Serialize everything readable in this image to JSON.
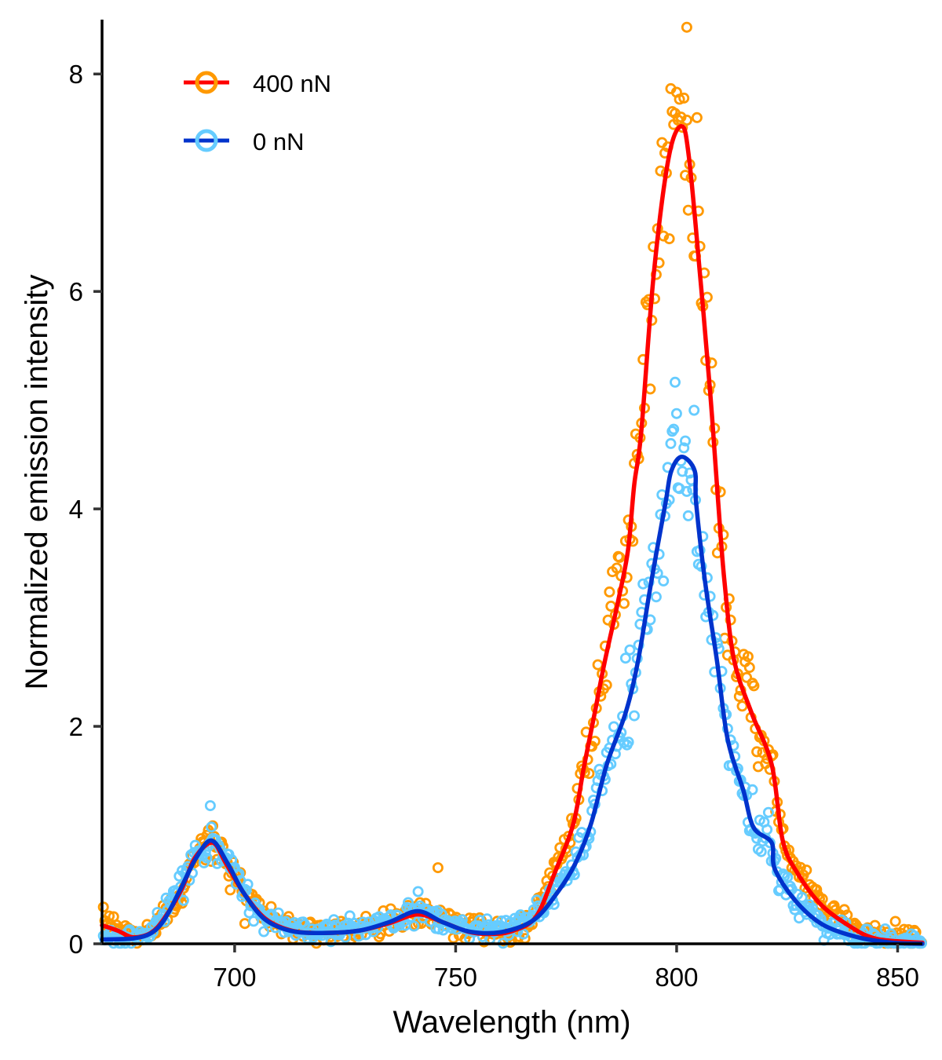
{
  "chart_data": {
    "type": "scatter",
    "title": "",
    "xlabel": "Wavelength (nm)",
    "ylabel": "Normalized emission intensity",
    "xlim": [
      670,
      855.6
    ],
    "ylim": [
      0,
      8.5
    ],
    "xticks": [
      700,
      750,
      800,
      850
    ],
    "xtick_labels": [
      "700",
      "750",
      "800",
      "850"
    ],
    "yticks": [
      0,
      2,
      4,
      6,
      8
    ],
    "ytick_labels": [
      "0",
      "2",
      "4",
      "6",
      "8"
    ],
    "grid": false,
    "legend_position": "top-left",
    "series": [
      {
        "name": "400 nN",
        "point_color": "#FF9900",
        "line_color": "#FF0000",
        "fit_curve": {
          "x": [
            670,
            673.6,
            677,
            681,
            684,
            688,
            691,
            695,
            698,
            702,
            707,
            713,
            720,
            728,
            735,
            741.4,
            747,
            753,
            758,
            763,
            768.2,
            772.5,
            776.6,
            779,
            781.5,
            783.7,
            786.7,
            789,
            790.4,
            792,
            794.8,
            798.2,
            801.1,
            802.8,
            805.3,
            807.6,
            809.4,
            810.8,
            813,
            816.9,
            821.5,
            824,
            827.5,
            832.9,
            840,
            844,
            848,
            855.6
          ],
          "y": [
            0.17,
            0.12,
            0.06,
            0.1,
            0.23,
            0.5,
            0.79,
            0.93,
            0.74,
            0.47,
            0.23,
            0.12,
            0.1,
            0.12,
            0.19,
            0.27,
            0.2,
            0.11,
            0.09,
            0.12,
            0.25,
            0.66,
            1.1,
            1.62,
            2.13,
            2.59,
            3.14,
            3.62,
            4.22,
            4.71,
            6.15,
            7.23,
            7.52,
            7.23,
            6.15,
            5.07,
            4.06,
            3.34,
            2.61,
            2.13,
            1.65,
            0.95,
            0.64,
            0.35,
            0.14,
            0.06,
            0.03,
            0.01
          ]
        },
        "outliers": [
          {
            "x": 802.3,
            "y": 8.43
          },
          {
            "x": 746,
            "y": 0.7
          }
        ]
      },
      {
        "name": "0 nN",
        "point_color": "#66CCFF",
        "line_color": "#0033CC",
        "fit_curve": {
          "x": [
            670,
            677.1,
            681.2,
            684.2,
            687.7,
            691.3,
            694.8,
            698.4,
            702,
            706.7,
            712.6,
            719.7,
            728,
            735,
            741.4,
            747,
            753.5,
            760.6,
            767.7,
            773,
            777.1,
            780.6,
            784.2,
            788.5,
            791.3,
            794.3,
            797.5,
            798.8,
            801.2,
            804.1,
            804.4,
            806.4,
            809.1,
            811.5,
            815.1,
            817.4,
            821.5,
            822.2,
            826.8,
            832.9,
            841,
            848.8,
            855.6
          ],
          "y": [
            0.04,
            0.05,
            0.1,
            0.23,
            0.5,
            0.79,
            0.95,
            0.74,
            0.47,
            0.23,
            0.12,
            0.1,
            0.12,
            0.2,
            0.3,
            0.2,
            0.11,
            0.11,
            0.22,
            0.47,
            0.74,
            1.1,
            1.65,
            2.13,
            2.61,
            3.34,
            4.06,
            4.35,
            4.48,
            4.35,
            4.06,
            3.34,
            2.61,
            1.89,
            1.41,
            1.07,
            0.93,
            0.69,
            0.4,
            0.18,
            0.06,
            0.01,
            0.0
          ]
        },
        "outliers": [
          {
            "x": 694.5,
            "y": 1.27
          },
          {
            "x": 741.5,
            "y": 0.48
          }
        ]
      }
    ]
  },
  "legend": {
    "items": [
      {
        "label": "400 nN",
        "point_color": "#FF9900",
        "line_color": "#FF0000"
      },
      {
        "label": "0 nN",
        "point_color": "#66CCFF",
        "line_color": "#0033CC"
      }
    ]
  }
}
